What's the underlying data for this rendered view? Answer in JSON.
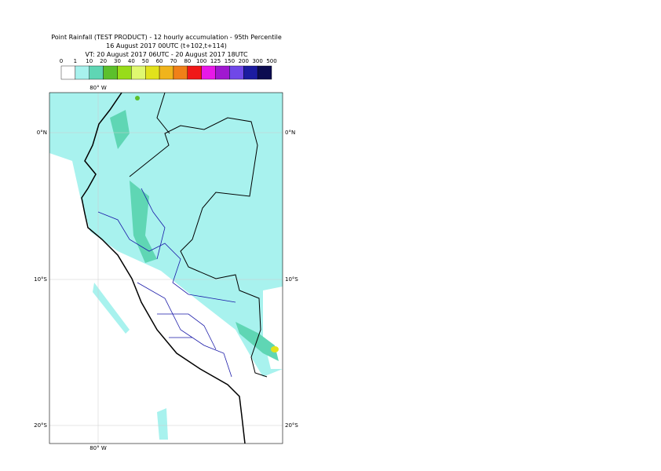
{
  "title_lines": [
    "Point Rainfall (TEST PRODUCT) - 12 hourly accumulation - 95th Percentile",
    "16 August 2017 00UTC (t+102,t+114)",
    "VT: 20 August 2017 06UTC - 20 August 2017 18UTC"
  ],
  "legend": {
    "labels": [
      "0",
      "1",
      "10",
      "20",
      "30",
      "40",
      "50",
      "60",
      "70",
      "80",
      "100",
      "125",
      "150",
      "200",
      "300",
      "500"
    ],
    "colors": [
      "#ffffff",
      "#a8f2ee",
      "#5fd6b4",
      "#5cc02c",
      "#98dc1a",
      "#e0f870",
      "#e2e21c",
      "#f0b41c",
      "#f08018",
      "#f01818",
      "#e818e8",
      "#a018d0",
      "#7048e8",
      "#1c1ca0",
      "#0c0c50"
    ]
  },
  "map": {
    "longitude_labels": {
      "top": "80° W",
      "bottom": "80° W"
    },
    "latitude_labels": {
      "left": [
        "0°N",
        "10°S",
        "20°S"
      ],
      "right": [
        "0°N",
        "10°S",
        "20°S"
      ]
    }
  }
}
